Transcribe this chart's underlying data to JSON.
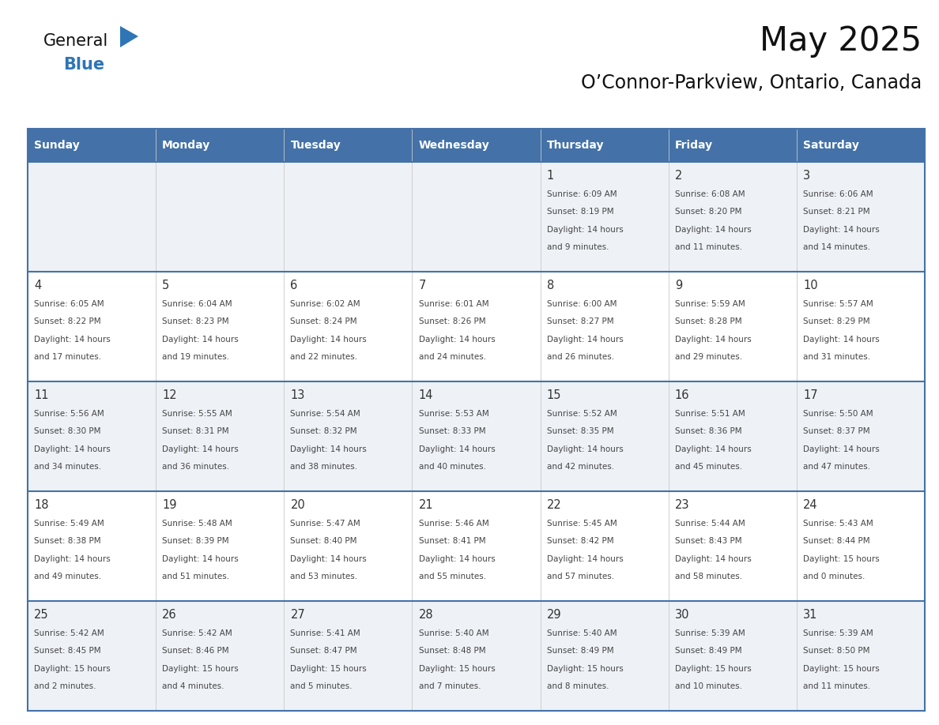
{
  "title": "May 2025",
  "subtitle": "O’Connor-Parkview, Ontario, Canada",
  "days_of_week": [
    "Sunday",
    "Monday",
    "Tuesday",
    "Wednesday",
    "Thursday",
    "Friday",
    "Saturday"
  ],
  "header_bg": "#4472a8",
  "header_text": "#ffffff",
  "row_bg_odd": "#eef2f7",
  "row_bg_even": "#ffffff",
  "day_num_color": "#333333",
  "cell_text_color": "#444444",
  "border_color": "#4472a8",
  "logo_general_color": "#111111",
  "logo_blue_color": "#2e75b6",
  "calendar_data": [
    [
      null,
      null,
      null,
      null,
      {
        "day": 1,
        "sunrise": "6:09 AM",
        "sunset": "8:19 PM",
        "daylight": "14 hours and 9 minutes"
      },
      {
        "day": 2,
        "sunrise": "6:08 AM",
        "sunset": "8:20 PM",
        "daylight": "14 hours and 11 minutes"
      },
      {
        "day": 3,
        "sunrise": "6:06 AM",
        "sunset": "8:21 PM",
        "daylight": "14 hours and 14 minutes"
      }
    ],
    [
      {
        "day": 4,
        "sunrise": "6:05 AM",
        "sunset": "8:22 PM",
        "daylight": "14 hours and 17 minutes"
      },
      {
        "day": 5,
        "sunrise": "6:04 AM",
        "sunset": "8:23 PM",
        "daylight": "14 hours and 19 minutes"
      },
      {
        "day": 6,
        "sunrise": "6:02 AM",
        "sunset": "8:24 PM",
        "daylight": "14 hours and 22 minutes"
      },
      {
        "day": 7,
        "sunrise": "6:01 AM",
        "sunset": "8:26 PM",
        "daylight": "14 hours and 24 minutes"
      },
      {
        "day": 8,
        "sunrise": "6:00 AM",
        "sunset": "8:27 PM",
        "daylight": "14 hours and 26 minutes"
      },
      {
        "day": 9,
        "sunrise": "5:59 AM",
        "sunset": "8:28 PM",
        "daylight": "14 hours and 29 minutes"
      },
      {
        "day": 10,
        "sunrise": "5:57 AM",
        "sunset": "8:29 PM",
        "daylight": "14 hours and 31 minutes"
      }
    ],
    [
      {
        "day": 11,
        "sunrise": "5:56 AM",
        "sunset": "8:30 PM",
        "daylight": "14 hours and 34 minutes"
      },
      {
        "day": 12,
        "sunrise": "5:55 AM",
        "sunset": "8:31 PM",
        "daylight": "14 hours and 36 minutes"
      },
      {
        "day": 13,
        "sunrise": "5:54 AM",
        "sunset": "8:32 PM",
        "daylight": "14 hours and 38 minutes"
      },
      {
        "day": 14,
        "sunrise": "5:53 AM",
        "sunset": "8:33 PM",
        "daylight": "14 hours and 40 minutes"
      },
      {
        "day": 15,
        "sunrise": "5:52 AM",
        "sunset": "8:35 PM",
        "daylight": "14 hours and 42 minutes"
      },
      {
        "day": 16,
        "sunrise": "5:51 AM",
        "sunset": "8:36 PM",
        "daylight": "14 hours and 45 minutes"
      },
      {
        "day": 17,
        "sunrise": "5:50 AM",
        "sunset": "8:37 PM",
        "daylight": "14 hours and 47 minutes"
      }
    ],
    [
      {
        "day": 18,
        "sunrise": "5:49 AM",
        "sunset": "8:38 PM",
        "daylight": "14 hours and 49 minutes"
      },
      {
        "day": 19,
        "sunrise": "5:48 AM",
        "sunset": "8:39 PM",
        "daylight": "14 hours and 51 minutes"
      },
      {
        "day": 20,
        "sunrise": "5:47 AM",
        "sunset": "8:40 PM",
        "daylight": "14 hours and 53 minutes"
      },
      {
        "day": 21,
        "sunrise": "5:46 AM",
        "sunset": "8:41 PM",
        "daylight": "14 hours and 55 minutes"
      },
      {
        "day": 22,
        "sunrise": "5:45 AM",
        "sunset": "8:42 PM",
        "daylight": "14 hours and 57 minutes"
      },
      {
        "day": 23,
        "sunrise": "5:44 AM",
        "sunset": "8:43 PM",
        "daylight": "14 hours and 58 minutes"
      },
      {
        "day": 24,
        "sunrise": "5:43 AM",
        "sunset": "8:44 PM",
        "daylight": "15 hours and 0 minutes"
      }
    ],
    [
      {
        "day": 25,
        "sunrise": "5:42 AM",
        "sunset": "8:45 PM",
        "daylight": "15 hours and 2 minutes"
      },
      {
        "day": 26,
        "sunrise": "5:42 AM",
        "sunset": "8:46 PM",
        "daylight": "15 hours and 4 minutes"
      },
      {
        "day": 27,
        "sunrise": "5:41 AM",
        "sunset": "8:47 PM",
        "daylight": "15 hours and 5 minutes"
      },
      {
        "day": 28,
        "sunrise": "5:40 AM",
        "sunset": "8:48 PM",
        "daylight": "15 hours and 7 minutes"
      },
      {
        "day": 29,
        "sunrise": "5:40 AM",
        "sunset": "8:49 PM",
        "daylight": "15 hours and 8 minutes"
      },
      {
        "day": 30,
        "sunrise": "5:39 AM",
        "sunset": "8:49 PM",
        "daylight": "15 hours and 10 minutes"
      },
      {
        "day": 31,
        "sunrise": "5:39 AM",
        "sunset": "8:50 PM",
        "daylight": "15 hours and 11 minutes"
      }
    ]
  ]
}
